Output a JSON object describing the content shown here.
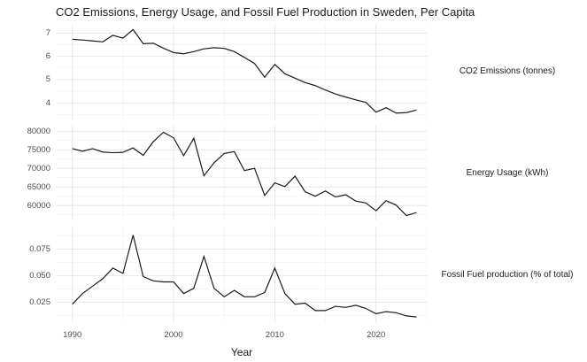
{
  "title": "CO2 Emissions, Energy Usage, and Fossil Fuel Production in Sweden, Per Capita",
  "colors": {
    "line": "#1b1b1b",
    "grid_major": "#e4e4e4",
    "grid_minor": "#f2f2f2",
    "axis_text": "#4d4d4d",
    "text": "#1a1a1a",
    "background": "#ffffff"
  },
  "chart_data": {
    "type": "line",
    "title": "CO2 Emissions, Energy Usage, and Fossil Fuel Production in Sweden, Per Capita",
    "xlabel": "Year",
    "grid": true,
    "legend_position": "right-facet-strips",
    "x": [
      1990,
      1991,
      1992,
      1993,
      1994,
      1995,
      1996,
      1997,
      1998,
      1999,
      2000,
      2001,
      2002,
      2003,
      2004,
      2005,
      2006,
      2007,
      2008,
      2009,
      2010,
      2011,
      2012,
      2013,
      2014,
      2015,
      2016,
      2017,
      2018,
      2019,
      2020,
      2021,
      2022,
      2023,
      2024
    ],
    "xlim": [
      1988.45,
      2025.1
    ],
    "x_tick_labels": [
      "1990",
      "2000",
      "2010",
      "2020"
    ],
    "x_tick_years": [
      1990,
      2000,
      2010,
      2020
    ],
    "x_major_gridlines": [
      1990,
      2000,
      2010,
      2020
    ],
    "x_minor_gridlines": [
      1995,
      2005,
      2015,
      2025
    ],
    "panels": [
      {
        "label": "CO2 Emissions (tonnes)",
        "ylim": [
          3.285,
          7.354
        ],
        "y_major_gridlines": [
          4,
          5,
          6,
          7
        ],
        "y_minor_gridlines": [
          3.5,
          4.5,
          5.5,
          6.5
        ],
        "y_tick_values": [
          7,
          6,
          5,
          4
        ],
        "y_tick_labels": [
          "7",
          "6",
          "5",
          "4"
        ],
        "values": [
          6.73,
          6.7,
          6.66,
          6.62,
          6.9,
          6.78,
          7.15,
          6.54,
          6.56,
          6.35,
          6.16,
          6.11,
          6.2,
          6.32,
          6.37,
          6.34,
          6.2,
          5.95,
          5.69,
          5.1,
          5.65,
          5.25,
          5.06,
          4.87,
          4.74,
          4.55,
          4.38,
          4.25,
          4.13,
          4.02,
          3.6,
          3.79,
          3.56,
          3.58,
          3.69
        ]
      },
      {
        "label": "Energy Usage (kWh)",
        "ylim": [
          56000,
          81714
        ],
        "y_major_gridlines": [
          60000,
          65000,
          70000,
          75000,
          80000
        ],
        "y_minor_gridlines": [
          57500,
          62500,
          67500,
          72500,
          77500
        ],
        "y_tick_values": [
          80000,
          75000,
          70000,
          65000,
          60000
        ],
        "y_tick_labels": [
          "80000",
          "75000",
          "70000",
          "65000",
          "60000"
        ],
        "values": [
          75300,
          74600,
          75300,
          74400,
          74200,
          74300,
          75500,
          73500,
          77200,
          79700,
          78200,
          73400,
          78100,
          68000,
          71500,
          74000,
          74500,
          69400,
          70000,
          62700,
          66100,
          65100,
          67900,
          63700,
          62500,
          63900,
          62300,
          62900,
          61200,
          60700,
          58600,
          61300,
          60100,
          57300,
          58100
        ]
      },
      {
        "label": "Fossil Fuel production (% of total)",
        "ylim": [
          0.00608,
          0.09608
        ],
        "y_major_gridlines": [
          0.025,
          0.05,
          0.075
        ],
        "y_minor_gridlines": [
          0.0125,
          0.0375,
          0.0625,
          0.0875
        ],
        "y_tick_values": [
          0.075,
          0.05,
          0.025
        ],
        "y_tick_labels": [
          "0.075",
          "0.050",
          "0.025"
        ],
        "values": [
          0.023,
          0.033,
          0.04,
          0.047,
          0.057,
          0.052,
          0.088,
          0.049,
          0.045,
          0.044,
          0.044,
          0.033,
          0.038,
          0.068,
          0.038,
          0.03,
          0.036,
          0.03,
          0.03,
          0.034,
          0.057,
          0.033,
          0.023,
          0.024,
          0.017,
          0.017,
          0.021,
          0.02,
          0.022,
          0.019,
          0.014,
          0.016,
          0.015,
          0.012,
          0.011
        ]
      }
    ]
  }
}
